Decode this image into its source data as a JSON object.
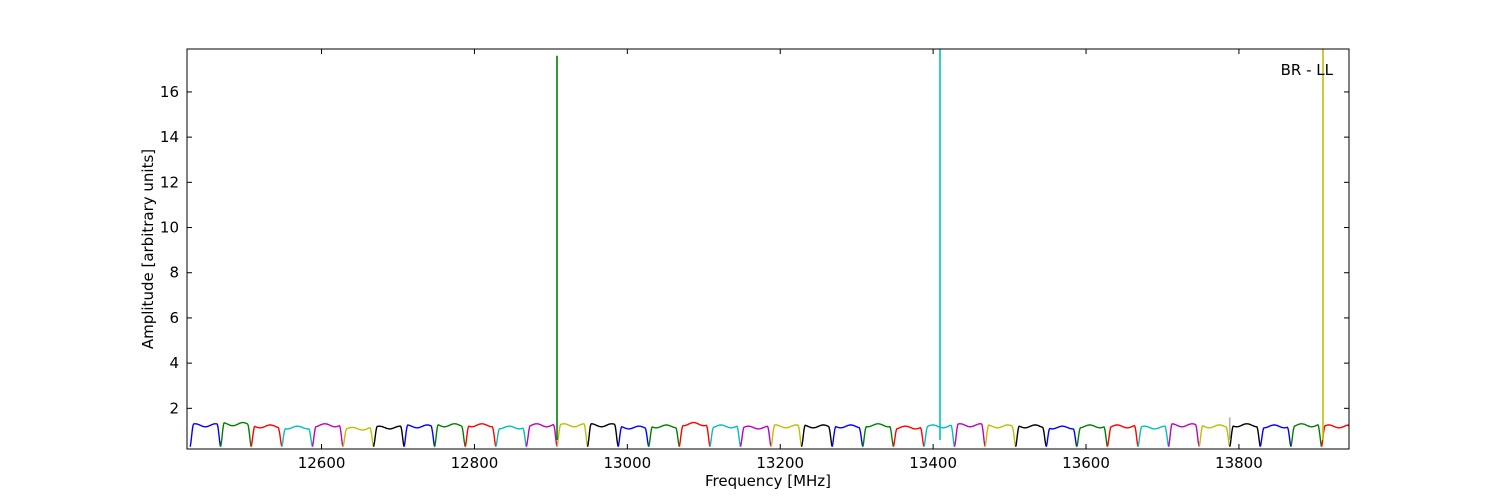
{
  "chart_data": {
    "type": "line",
    "title": "",
    "annotation": "BR - LL",
    "xlabel": "Frequency [MHz]",
    "ylabel": "Amplitude [arbitrary units]",
    "xlim": [
      12424,
      13944
    ],
    "ylim": [
      0.2,
      17.9
    ],
    "xticks": [
      12600,
      12800,
      13000,
      13200,
      13400,
      13600,
      13800
    ],
    "yticks": [
      2,
      4,
      6,
      8,
      10,
      12,
      14,
      16
    ],
    "grid": false,
    "legend": "none",
    "band_width_mhz": 40,
    "bands": [
      {
        "start": 12428,
        "color": "#0000ff",
        "amp": 1.25
      },
      {
        "start": 12468,
        "color": "#008000",
        "amp": 1.3
      },
      {
        "start": 12508,
        "color": "#ff0000",
        "amp": 1.2
      },
      {
        "start": 12548,
        "color": "#00bfbf",
        "amp": 1.15
      },
      {
        "start": 12588,
        "color": "#bf00bf",
        "amp": 1.25
      },
      {
        "start": 12628,
        "color": "#bfbf00",
        "amp": 1.1
      },
      {
        "start": 12668,
        "color": "#000000",
        "amp": 1.15
      },
      {
        "start": 12708,
        "color": "#0000ff",
        "amp": 1.2
      },
      {
        "start": 12748,
        "color": "#008000",
        "amp": 1.25
      },
      {
        "start": 12788,
        "color": "#ff0000",
        "amp": 1.25
      },
      {
        "start": 12828,
        "color": "#00bfbf",
        "amp": 1.15
      },
      {
        "start": 12868,
        "color": "#bf00bf",
        "amp": 1.25
      },
      {
        "start": 12908,
        "color": "#bfbf00",
        "amp": 1.25
      },
      {
        "start": 12948,
        "color": "#000000",
        "amp": 1.25
      },
      {
        "start": 12988,
        "color": "#0000ff",
        "amp": 1.15
      },
      {
        "start": 13028,
        "color": "#008000",
        "amp": 1.2
      },
      {
        "start": 13068,
        "color": "#ff0000",
        "amp": 1.3
      },
      {
        "start": 13108,
        "color": "#00bfbf",
        "amp": 1.2
      },
      {
        "start": 13148,
        "color": "#bf00bf",
        "amp": 1.15
      },
      {
        "start": 13188,
        "color": "#bfbf00",
        "amp": 1.2
      },
      {
        "start": 13228,
        "color": "#000000",
        "amp": 1.2
      },
      {
        "start": 13268,
        "color": "#0000ff",
        "amp": 1.2
      },
      {
        "start": 13308,
        "color": "#008000",
        "amp": 1.25
      },
      {
        "start": 13348,
        "color": "#ff0000",
        "amp": 1.15
      },
      {
        "start": 13388,
        "color": "#00bfbf",
        "amp": 1.2
      },
      {
        "start": 13428,
        "color": "#bf00bf",
        "amp": 1.25
      },
      {
        "start": 13468,
        "color": "#bfbf00",
        "amp": 1.2
      },
      {
        "start": 13508,
        "color": "#000000",
        "amp": 1.2
      },
      {
        "start": 13548,
        "color": "#0000ff",
        "amp": 1.15
      },
      {
        "start": 13588,
        "color": "#008000",
        "amp": 1.2
      },
      {
        "start": 13628,
        "color": "#ff0000",
        "amp": 1.2
      },
      {
        "start": 13668,
        "color": "#00bfbf",
        "amp": 1.15
      },
      {
        "start": 13708,
        "color": "#bf00bf",
        "amp": 1.25
      },
      {
        "start": 13748,
        "color": "#bfbf00",
        "amp": 1.2
      },
      {
        "start": 13788,
        "color": "#000000",
        "amp": 1.25
      },
      {
        "start": 13828,
        "color": "#0000ff",
        "amp": 1.2
      },
      {
        "start": 13868,
        "color": "#008000",
        "amp": 1.25
      },
      {
        "start": 13908,
        "color": "#ff0000",
        "amp": 1.2
      }
    ],
    "spikes": [
      {
        "x": 12908,
        "y": 17.6,
        "color": "#008000"
      },
      {
        "x": 13409,
        "y": 17.9,
        "color": "#00bfbf"
      },
      {
        "x": 13788,
        "y": 1.6,
        "color": "#b0b0b0"
      },
      {
        "x": 13910,
        "y": 17.9,
        "color": "#bfbf00"
      }
    ]
  }
}
